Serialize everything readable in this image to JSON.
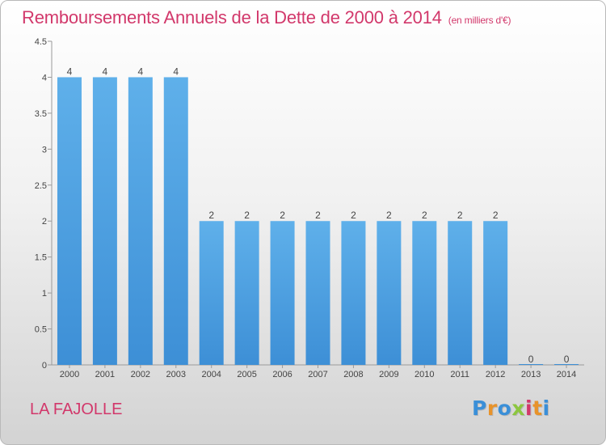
{
  "chart_data": {
    "type": "bar",
    "title": "Remboursements Annuels de la Dette de 2000 à 2014",
    "subtitle": "(en milliers d'€)",
    "categories": [
      "2000",
      "2001",
      "2002",
      "2003",
      "2004",
      "2005",
      "2006",
      "2007",
      "2008",
      "2009",
      "2010",
      "2011",
      "2012",
      "2013",
      "2014"
    ],
    "values": [
      4,
      4,
      4,
      4,
      2,
      2,
      2,
      2,
      2,
      2,
      2,
      2,
      2,
      0,
      0
    ],
    "data_labels": [
      "4",
      "4",
      "4",
      "4",
      "2",
      "2",
      "2",
      "2",
      "2",
      "2",
      "2",
      "2",
      "2",
      "0",
      "0"
    ],
    "ylim": [
      0,
      4.5
    ],
    "yticks": [
      "0",
      "0.5",
      "1",
      "1.5",
      "2",
      "2.5",
      "3",
      "3.5",
      "4",
      "4.5"
    ],
    "xlabel": "",
    "ylabel": "",
    "grid": false,
    "legend": "none",
    "bar_color": "#3d8fd6",
    "bar_color_light": "#5fb0ea"
  },
  "commune": "LA FAJOLLE",
  "logo": {
    "letters": [
      "P",
      "r",
      "o",
      "x",
      "i",
      "t",
      "i"
    ],
    "colors": [
      "#3a8fd8",
      "#e8932a",
      "#3a8fd8",
      "#8cc63f",
      "#d2386b",
      "#e8932a",
      "#3a8fd8"
    ]
  }
}
